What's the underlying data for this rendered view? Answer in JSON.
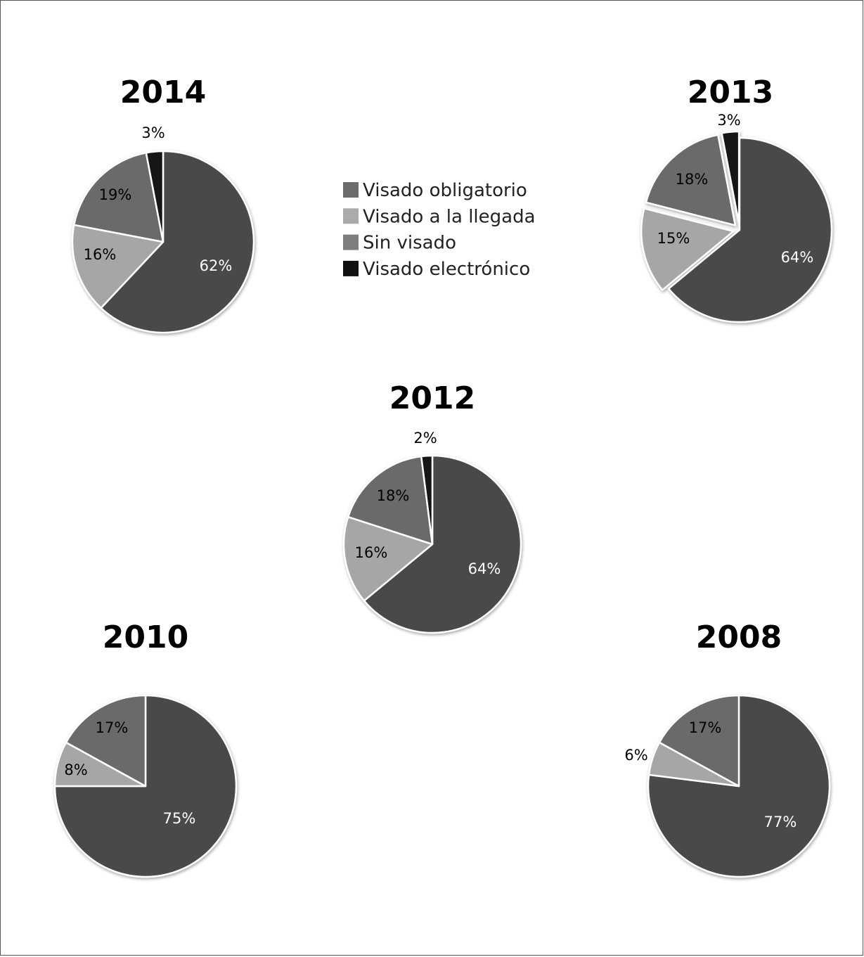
{
  "chart_data": [
    {
      "type": "pie",
      "title": "2014",
      "categories": [
        "Visado obligatorio",
        "Visado a la llegada",
        "Sin visado",
        "Visado electrónico"
      ],
      "values": [
        62,
        16,
        19,
        3
      ],
      "labels": [
        "62%",
        "16%",
        "19%",
        "3%"
      ]
    },
    {
      "type": "pie",
      "title": "2013",
      "categories": [
        "Visado obligatorio",
        "Visado a la llegada",
        "Sin visado",
        "Visado electrónico"
      ],
      "values": [
        64,
        15,
        18,
        3
      ],
      "labels": [
        "64%",
        "15%",
        "18%",
        "3%"
      ]
    },
    {
      "type": "pie",
      "title": "2012",
      "categories": [
        "Visado obligatorio",
        "Visado a la llegada",
        "Sin visado",
        "Visado electrónico"
      ],
      "values": [
        64,
        16,
        18,
        2
      ],
      "labels": [
        "64%",
        "16%",
        "18%",
        "2%"
      ]
    },
    {
      "type": "pie",
      "title": "2010",
      "categories": [
        "Visado obligatorio",
        "Visado a la llegada",
        "Sin visado"
      ],
      "values": [
        75,
        8,
        17
      ],
      "labels": [
        "75%",
        "8%",
        "17%"
      ]
    },
    {
      "type": "pie",
      "title": "2008",
      "categories": [
        "Visado obligatorio",
        "Visado a la llegada",
        "Sin visado"
      ],
      "values": [
        77,
        6,
        17
      ],
      "labels": [
        "77%",
        "6%",
        "17%"
      ]
    }
  ],
  "legend": {
    "items": [
      {
        "label": "Visado obligatorio",
        "color": "#6c6c6c"
      },
      {
        "label": "Visado a la llegada",
        "color": "#ababab"
      },
      {
        "label": "Sin visado",
        "color": "#7e7e7e"
      },
      {
        "label": "Visado electrónico",
        "color": "#111111"
      }
    ]
  },
  "colors": {
    "Visado obligatorio": "#484848",
    "Visado a la llegada": "#a6a6a6",
    "Sin visado": "#6b6b6b",
    "Visado electrónico": "#161616",
    "slice_border": "#ffffff"
  }
}
